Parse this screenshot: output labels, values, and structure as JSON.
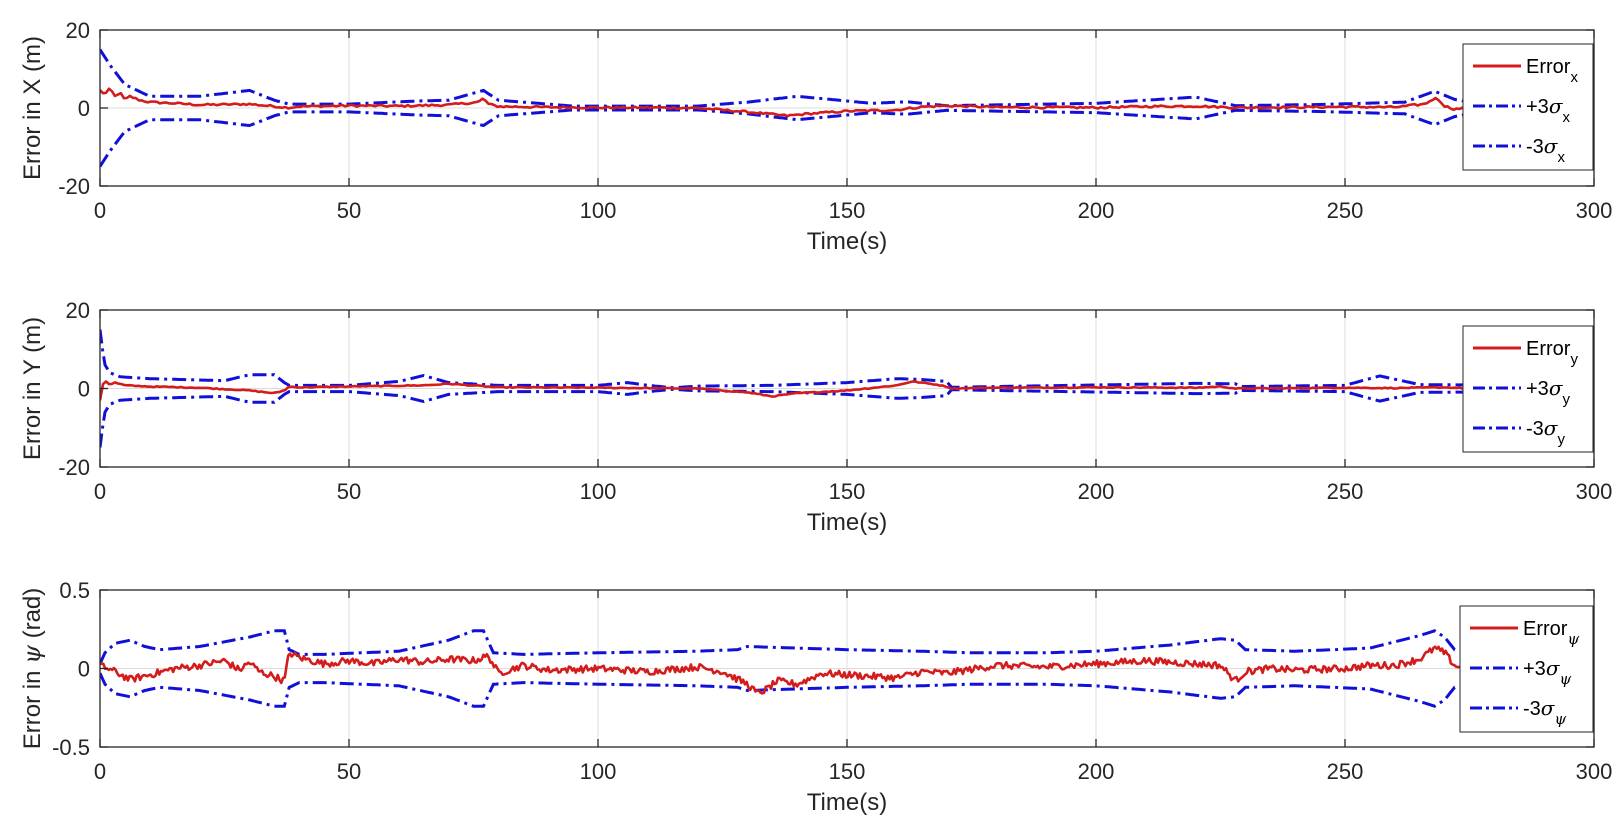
{
  "colors": {
    "error": "#d41c1c",
    "sigma": "#1010d8",
    "axis": "#262626",
    "grid": "#dcdcdc"
  },
  "chart_data": [
    {
      "type": "line",
      "id": "x",
      "ylabel": "Error in X (m)",
      "xlabel": "Time(s)",
      "xlim": [
        0,
        300
      ],
      "ylim": [
        -20,
        20
      ],
      "xticks": [
        0,
        50,
        100,
        150,
        200,
        250,
        300
      ],
      "yticks": [
        -20,
        0,
        20
      ],
      "legend": [
        {
          "label": "Error",
          "sub": "x"
        },
        {
          "label": "+3σ",
          "sub": "x"
        },
        {
          "label": "-3σ",
          "sub": "x"
        }
      ],
      "sigma_envelope": {
        "t": [
          0,
          2,
          5,
          10,
          20,
          30,
          35,
          38,
          50,
          64,
          70,
          77,
          80,
          95,
          120,
          130,
          140,
          155,
          162,
          170,
          200,
          220,
          228,
          245,
          262,
          268,
          272,
          275
        ],
        "values": [
          15,
          11,
          6,
          3,
          3,
          4.5,
          2,
          1.0,
          1.0,
          1.8,
          2,
          4.5,
          2,
          0.5,
          0.5,
          1.5,
          3,
          1.2,
          1.6,
          0.6,
          1.2,
          2.8,
          0.6,
          0.9,
          1.5,
          4.3,
          2.2,
          1.5
        ]
      },
      "error": {
        "t": [
          0,
          1,
          2,
          3,
          4,
          5,
          6,
          8,
          10,
          15,
          20,
          30,
          36,
          38,
          40,
          50,
          60,
          70,
          76,
          77,
          78,
          80,
          90,
          100,
          110,
          120,
          130,
          138,
          142,
          150,
          160,
          165,
          170,
          180,
          200,
          210,
          220,
          228,
          240,
          250,
          260,
          266,
          268,
          269,
          270,
          272,
          275
        ],
        "values": [
          4.5,
          3.5,
          5,
          3,
          4,
          2,
          3,
          2,
          1.5,
          1.2,
          0.8,
          1.0,
          0.3,
          0.1,
          0.4,
          0.6,
          0.5,
          0.8,
          1.5,
          2.5,
          1.0,
          0.4,
          0.2,
          0.1,
          0.1,
          0.0,
          -1.0,
          -2.0,
          -1.5,
          -0.8,
          -0.5,
          0.3,
          0.6,
          0.2,
          0.1,
          0.4,
          0.5,
          0.1,
          0.2,
          0.3,
          0.2,
          1.0,
          2.5,
          2.0,
          0.5,
          -0.3,
          0.1
        ]
      }
    },
    {
      "type": "line",
      "id": "y",
      "ylabel": "Error in Y (m)",
      "xlabel": "Time(s)",
      "xlim": [
        0,
        300
      ],
      "ylim": [
        -20,
        20
      ],
      "xticks": [
        0,
        50,
        100,
        150,
        200,
        250,
        300
      ],
      "yticks": [
        -20,
        0,
        20
      ],
      "legend": [
        {
          "label": "Error",
          "sub": "y"
        },
        {
          "label": "+3σ",
          "sub": "y"
        },
        {
          "label": "-3σ",
          "sub": "y"
        }
      ],
      "sigma_envelope": {
        "t": [
          0,
          0.5,
          1,
          2,
          4,
          10,
          25,
          30,
          35,
          37,
          38,
          50,
          55,
          60,
          65,
          70,
          80,
          100,
          106,
          110,
          115,
          120,
          135,
          150,
          160,
          165,
          170,
          171,
          180,
          200,
          220,
          228,
          229,
          250,
          257,
          265,
          275
        ],
        "values": [
          15,
          10,
          6,
          4,
          3,
          2.5,
          2.0,
          3.5,
          3.5,
          1.5,
          0.8,
          0.8,
          1.3,
          1.8,
          3.3,
          1.5,
          0.8,
          0.8,
          1.5,
          0.8,
          0.2,
          0.6,
          0.8,
          1.5,
          2.5,
          2.3,
          1.8,
          0.3,
          0.5,
          0.9,
          1.3,
          1.2,
          0.5,
          0.8,
          3.2,
          1.0,
          0.9
        ]
      },
      "error": {
        "t": [
          0,
          0.5,
          1,
          2,
          3,
          5,
          10,
          20,
          30,
          35,
          37,
          38,
          40,
          50,
          65,
          70,
          80,
          100,
          110,
          120,
          130,
          135,
          140,
          150,
          160,
          163,
          168,
          170,
          171,
          180,
          200,
          220,
          225,
          228,
          229,
          240,
          250,
          260,
          270,
          275
        ],
        "values": [
          -3,
          1,
          2,
          1,
          1.5,
          0.8,
          0.5,
          0.2,
          -0.5,
          -1.2,
          -0.5,
          0.5,
          0.3,
          0.5,
          0.8,
          1.2,
          0.3,
          0.2,
          0.1,
          0.0,
          -1.0,
          -2.0,
          -1.2,
          -0.5,
          0.8,
          1.8,
          1.0,
          0.5,
          0.0,
          0.2,
          0.3,
          0.2,
          0.5,
          0.0,
          0.0,
          0.1,
          0.2,
          0.1,
          0.3,
          0.0
        ]
      }
    },
    {
      "type": "line",
      "id": "psi",
      "ylabel_prefix": "Error in ",
      "ylabel_greek": "ψ",
      "ylabel_suffix": " (rad)",
      "xlabel": "Time(s)",
      "xlim": [
        0,
        300
      ],
      "ylim": [
        -0.5,
        0.5
      ],
      "xticks": [
        0,
        50,
        100,
        150,
        200,
        250,
        300
      ],
      "yticks": [
        -0.5,
        0,
        0.5
      ],
      "ytick_labels": [
        "-0.5",
        "0",
        "0.5"
      ],
      "legend": [
        {
          "label": "Error",
          "sub": "ψ"
        },
        {
          "label": "+3σ",
          "sub": "ψ"
        },
        {
          "label": "-3σ",
          "sub": "ψ"
        }
      ],
      "sigma_envelope": {
        "t": [
          0,
          1,
          3,
          6,
          9,
          12,
          20,
          30,
          35,
          37,
          38,
          40,
          45,
          60,
          70,
          75,
          77,
          79,
          85,
          100,
          120,
          128,
          130,
          150,
          165,
          175,
          190,
          200,
          215,
          225,
          228,
          230,
          240,
          255,
          265,
          268,
          270,
          272,
          275
        ],
        "values": [
          0.03,
          0.1,
          0.16,
          0.18,
          0.14,
          0.12,
          0.14,
          0.2,
          0.24,
          0.24,
          0.12,
          0.09,
          0.09,
          0.11,
          0.18,
          0.24,
          0.24,
          0.1,
          0.09,
          0.1,
          0.11,
          0.12,
          0.14,
          0.12,
          0.11,
          0.1,
          0.1,
          0.11,
          0.15,
          0.19,
          0.18,
          0.12,
          0.11,
          0.13,
          0.21,
          0.24,
          0.2,
          0.12,
          0.1
        ]
      },
      "error": {
        "t": [
          0,
          3,
          6,
          10,
          15,
          20,
          25,
          28,
          30,
          32,
          35,
          37,
          38,
          40,
          45,
          50,
          55,
          60,
          65,
          70,
          75,
          78,
          80,
          85,
          90,
          100,
          110,
          120,
          125,
          130,
          132,
          134,
          136,
          140,
          145,
          150,
          160,
          165,
          170,
          180,
          190,
          200,
          210,
          220,
          225,
          228,
          230,
          235,
          240,
          250,
          255,
          260,
          265,
          268,
          270,
          272,
          275
        ],
        "values": [
          0.02,
          -0.02,
          -0.07,
          -0.04,
          0.0,
          0.02,
          0.05,
          -0.01,
          0.04,
          -0.02,
          -0.05,
          -0.08,
          0.1,
          0.07,
          0.03,
          0.05,
          0.03,
          0.06,
          0.04,
          0.06,
          0.05,
          0.08,
          -0.03,
          0.02,
          -0.01,
          0.0,
          -0.02,
          0.01,
          -0.02,
          -0.1,
          -0.16,
          -0.13,
          -0.08,
          -0.1,
          -0.03,
          -0.04,
          -0.06,
          -0.02,
          -0.03,
          0.02,
          0.01,
          0.03,
          0.05,
          0.03,
          0.02,
          -0.08,
          -0.02,
          0.0,
          -0.01,
          0.0,
          0.02,
          0.02,
          0.06,
          0.13,
          0.1,
          0.02,
          -0.01
        ]
      }
    }
  ]
}
